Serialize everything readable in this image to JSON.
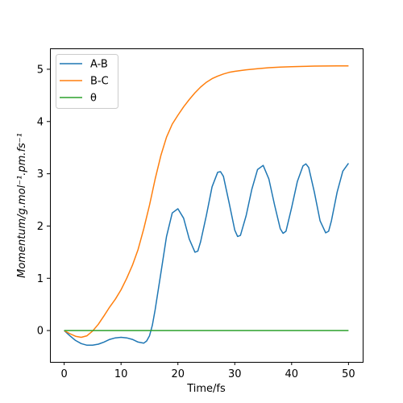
{
  "chart_data": {
    "type": "line",
    "xlabel": "Time/fs",
    "ylabel": "Momentum/g.mol⁻¹.pm.fs⁻¹",
    "xlim": [
      -2.5,
      52.5
    ],
    "ylim": [
      -0.6,
      5.4
    ],
    "xticks": [
      0,
      10,
      20,
      30,
      40,
      50
    ],
    "yticks": [
      0,
      1,
      2,
      3,
      4,
      5
    ],
    "legend_position": "top-left",
    "grid": false,
    "series": [
      {
        "name": "A-B",
        "color": "#1f77b4",
        "points": [
          [
            0,
            0
          ],
          [
            1,
            -0.1
          ],
          [
            2,
            -0.19
          ],
          [
            3,
            -0.25
          ],
          [
            4,
            -0.28
          ],
          [
            5,
            -0.28
          ],
          [
            6,
            -0.26
          ],
          [
            7,
            -0.22
          ],
          [
            8,
            -0.17
          ],
          [
            9,
            -0.14
          ],
          [
            10,
            -0.13
          ],
          [
            11,
            -0.14
          ],
          [
            12,
            -0.17
          ],
          [
            13,
            -0.22
          ],
          [
            14,
            -0.24
          ],
          [
            14.5,
            -0.2
          ],
          [
            15,
            -0.1
          ],
          [
            15.5,
            0.1
          ],
          [
            16,
            0.4
          ],
          [
            17,
            1.1
          ],
          [
            18,
            1.8
          ],
          [
            19,
            2.25
          ],
          [
            20,
            2.33
          ],
          [
            21,
            2.15
          ],
          [
            22,
            1.75
          ],
          [
            23,
            1.5
          ],
          [
            23.5,
            1.52
          ],
          [
            24,
            1.7
          ],
          [
            25,
            2.2
          ],
          [
            26,
            2.75
          ],
          [
            27,
            3.03
          ],
          [
            27.5,
            3.04
          ],
          [
            28,
            2.95
          ],
          [
            29,
            2.45
          ],
          [
            30,
            1.92
          ],
          [
            30.5,
            1.8
          ],
          [
            31,
            1.82
          ],
          [
            32,
            2.2
          ],
          [
            33,
            2.7
          ],
          [
            34,
            3.08
          ],
          [
            35,
            3.16
          ],
          [
            36,
            2.9
          ],
          [
            37,
            2.4
          ],
          [
            38,
            1.95
          ],
          [
            38.5,
            1.86
          ],
          [
            39,
            1.9
          ],
          [
            40,
            2.35
          ],
          [
            41,
            2.85
          ],
          [
            42,
            3.15
          ],
          [
            42.5,
            3.19
          ],
          [
            43,
            3.12
          ],
          [
            44,
            2.65
          ],
          [
            45,
            2.1
          ],
          [
            46,
            1.87
          ],
          [
            46.5,
            1.9
          ],
          [
            47,
            2.1
          ],
          [
            48,
            2.65
          ],
          [
            49,
            3.05
          ],
          [
            50,
            3.2
          ]
        ]
      },
      {
        "name": "B-C",
        "color": "#ff7f0e",
        "points": [
          [
            0,
            0
          ],
          [
            1,
            -0.06
          ],
          [
            2,
            -0.11
          ],
          [
            3,
            -0.13
          ],
          [
            4,
            -0.1
          ],
          [
            5,
            -0.01
          ],
          [
            6,
            0.12
          ],
          [
            7,
            0.28
          ],
          [
            8,
            0.45
          ],
          [
            9,
            0.6
          ],
          [
            10,
            0.78
          ],
          [
            11,
            1.0
          ],
          [
            12,
            1.25
          ],
          [
            13,
            1.55
          ],
          [
            14,
            1.95
          ],
          [
            15,
            2.4
          ],
          [
            16,
            2.9
          ],
          [
            17,
            3.35
          ],
          [
            18,
            3.7
          ],
          [
            19,
            3.95
          ],
          [
            20,
            4.12
          ],
          [
            21,
            4.28
          ],
          [
            22,
            4.42
          ],
          [
            23,
            4.55
          ],
          [
            24,
            4.66
          ],
          [
            25,
            4.75
          ],
          [
            26,
            4.82
          ],
          [
            27,
            4.87
          ],
          [
            28,
            4.91
          ],
          [
            29,
            4.94
          ],
          [
            30,
            4.96
          ],
          [
            32,
            4.99
          ],
          [
            34,
            5.01
          ],
          [
            36,
            5.03
          ],
          [
            38,
            5.04
          ],
          [
            40,
            5.05
          ],
          [
            42,
            5.055
          ],
          [
            44,
            5.06
          ],
          [
            46,
            5.062
          ],
          [
            48,
            5.064
          ],
          [
            50,
            5.065
          ]
        ]
      },
      {
        "name": "θ",
        "color": "#2ca02c",
        "points": [
          [
            0,
            0
          ],
          [
            50,
            0
          ]
        ]
      }
    ]
  }
}
